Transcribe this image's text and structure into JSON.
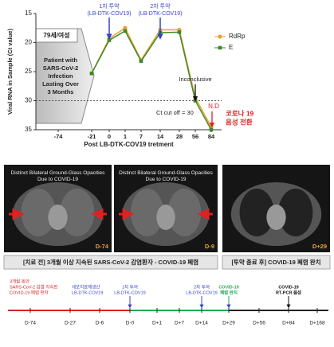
{
  "chart_data": {
    "type": "line",
    "y_label": "Viral RNA in Sample (Ct value)",
    "x_label": "Post LB-DTK-COV19 tretment",
    "categories": [
      "-74",
      "-21",
      "0",
      "1",
      "7",
      "14",
      "28",
      "56",
      "84"
    ],
    "series": [
      {
        "name": "RdRp",
        "color": "#f0a030",
        "values": [
          null,
          25.3,
          19.3,
          17.5,
          23,
          17.8,
          17.8,
          29.5,
          34.5
        ]
      },
      {
        "name": "E",
        "color": "#3a8a2a",
        "values": [
          null,
          25.3,
          19.6,
          18,
          23.2,
          18.3,
          18.2,
          30,
          35
        ]
      }
    ],
    "ylim": [
      15,
      35
    ],
    "yticks": [
      15,
      20,
      25,
      30,
      35
    ],
    "cutoff": 30,
    "cutoff_label": "Ct cut off = 30",
    "legend": "upper right",
    "patient_age": "79세/여성",
    "patient_text": [
      "Patient with",
      "SARS-CoV-2",
      "Infection",
      "Lasting Over",
      "3 Months"
    ],
    "dose1": [
      "1차 투약",
      "(LB-DTK-COV19)"
    ],
    "dose2": [
      "2차 투약",
      "(LB-DTK-COV19)"
    ],
    "inconclusive": "Inconclusive",
    "nd": "N.D",
    "negative": [
      "코로나 19",
      "음성 전환"
    ]
  },
  "images": [
    {
      "caption": "Distinct Bilateral Ground-Glass Opacities Due to COVID-19",
      "day": "D-74"
    },
    {
      "caption": "Distinct Bilateral Ground-Glass Opacities Due to COVID-19",
      "day": "D-9"
    },
    {
      "caption": null,
      "day": "D+29"
    }
  ],
  "image_captions": [
    "[치료 전] 3개월 이상 지속된 SARS-CoV-2 감염환자 - COVID-19 폐렴",
    "[투약 종료 후] COVID-19 폐렴 완치"
  ],
  "timeline": {
    "ticks": [
      "D-74",
      "D-27",
      "D-6",
      "D-0",
      "D+1",
      "D+7",
      "D+14",
      "D+29",
      "D+56",
      "D+84",
      "D+168"
    ],
    "events": [
      {
        "lines": [
          "3개월 동안",
          "SARS-CoV-2 감염 지속된",
          "COVID-19 폐렴 환자"
        ]
      },
      {
        "lines": [
          "세포치료제생산",
          "LB-DTK-COV19"
        ]
      },
      {
        "lines": [
          "1차 투여",
          "LB-DTK-COV19"
        ]
      },
      {
        "lines": [
          "2차 투여",
          "LB-DTK-COV19"
        ]
      },
      {
        "lines": [
          "COVID-19",
          "폐렴 완치"
        ]
      },
      {
        "lines": [
          "COVID-19",
          "RT-PCR 음성"
        ]
      }
    ]
  }
}
